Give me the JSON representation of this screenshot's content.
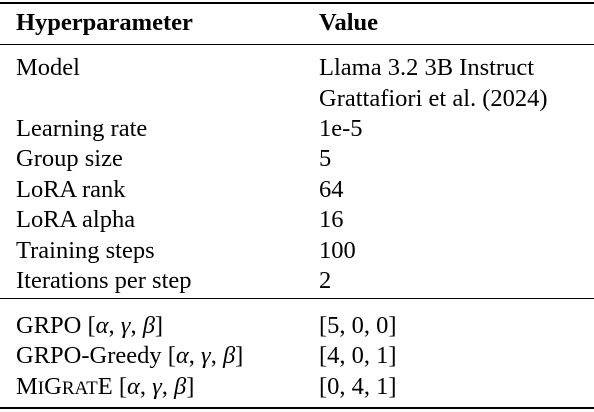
{
  "table": {
    "headers": {
      "hyperparameter": "Hyperparameter",
      "value": "Value"
    },
    "rows": [
      {
        "param": "Model",
        "value_line1": "Llama 3.2 3B Instruct",
        "value_line2": "Grattafiori et al. (2024)"
      },
      {
        "param": "Learning rate",
        "value": "1e-5"
      },
      {
        "param": "Group size",
        "value": "5"
      },
      {
        "param": "LoRA rank",
        "value": "64"
      },
      {
        "param": "LoRA alpha",
        "value": "16"
      },
      {
        "param": "Training steps",
        "value": "100"
      },
      {
        "param": "Iterations per step",
        "value": "2"
      }
    ],
    "weights": {
      "params": {
        "alpha": "α",
        "gamma": "γ",
        "beta": "β"
      },
      "rows": [
        {
          "name": "GRPO",
          "value": "[5, 0, 0]"
        },
        {
          "name": "GRPO-Greedy",
          "value": "[4, 0, 1]"
        },
        {
          "name_parts": [
            "M",
            "I",
            "G",
            "RAT",
            "E"
          ],
          "value": "[0, 4, 1]"
        }
      ]
    }
  }
}
